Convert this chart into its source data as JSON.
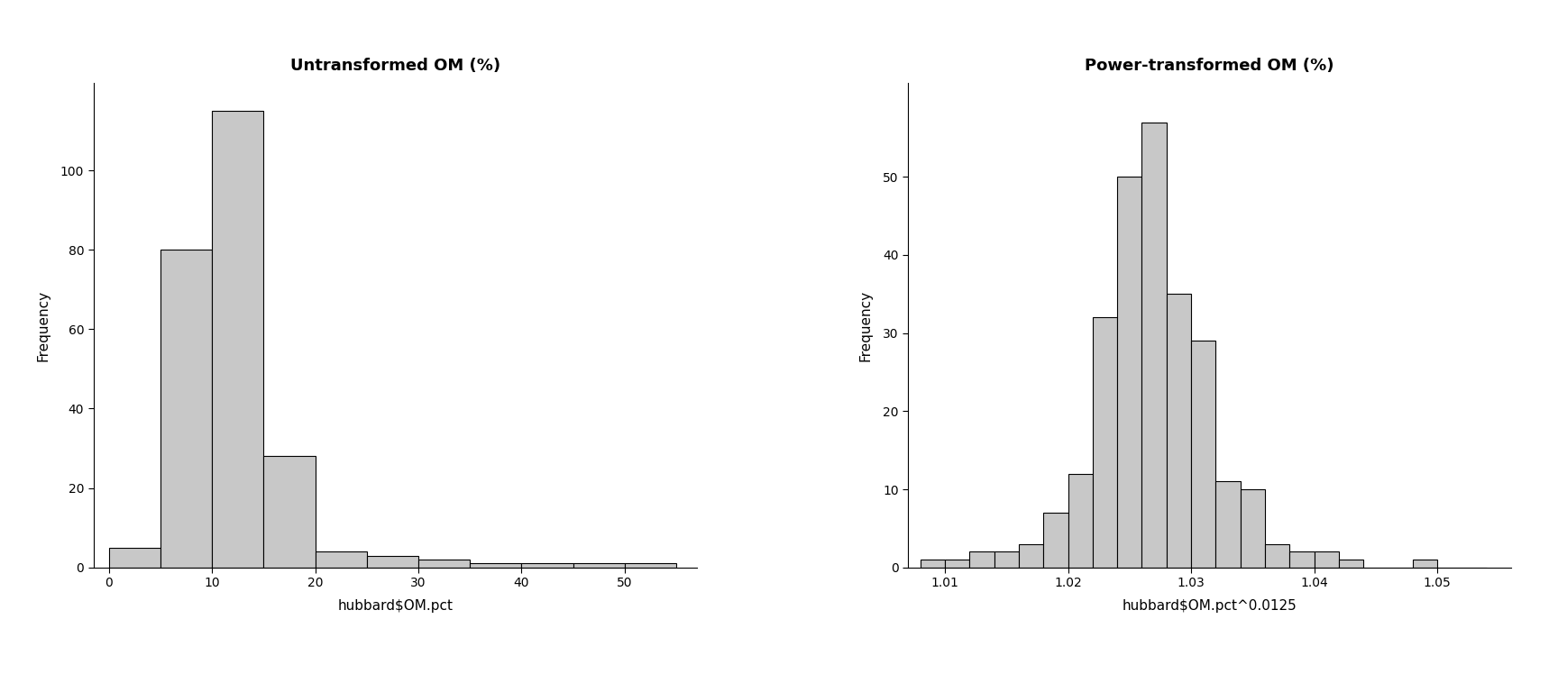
{
  "left": {
    "title": "Untransformed OM (%)",
    "xlabel": "hubbard$OM.pct",
    "ylabel": "Frequency",
    "bin_edges": [
      0,
      5,
      10,
      15,
      20,
      25,
      30,
      35,
      40,
      45,
      50,
      55
    ],
    "counts": [
      5,
      80,
      115,
      28,
      4,
      3,
      2,
      1,
      1,
      1,
      1
    ],
    "xlim": [
      -1.5,
      57
    ],
    "ylim": [
      0,
      122
    ],
    "yticks": [
      0,
      20,
      40,
      60,
      80,
      100
    ],
    "xticks": [
      0,
      10,
      20,
      30,
      40,
      50
    ]
  },
  "right": {
    "title": "Power-transformed OM (%)",
    "xlabel": "hubbard$OM.pct^0.0125",
    "ylabel": "Frequency",
    "bin_edges": [
      1.008,
      1.01,
      1.012,
      1.014,
      1.016,
      1.018,
      1.02,
      1.022,
      1.024,
      1.026,
      1.028,
      1.03,
      1.032,
      1.034,
      1.036,
      1.038,
      1.04,
      1.042,
      1.044,
      1.046,
      1.048,
      1.05,
      1.052,
      1.054
    ],
    "counts": [
      1,
      1,
      2,
      2,
      3,
      7,
      12,
      32,
      50,
      57,
      35,
      29,
      11,
      10,
      3,
      2,
      2,
      1,
      0,
      0,
      1,
      0,
      0
    ],
    "xlim": [
      1.007,
      1.056
    ],
    "ylim": [
      0,
      62
    ],
    "yticks": [
      0,
      10,
      20,
      30,
      40,
      50
    ],
    "xticks": [
      1.01,
      1.02,
      1.03,
      1.04,
      1.05
    ]
  },
  "bar_color": "#c8c8c8",
  "bar_edgecolor": "#000000",
  "background_color": "#ffffff",
  "title_fontsize": 13,
  "label_fontsize": 11,
  "tick_fontsize": 10
}
